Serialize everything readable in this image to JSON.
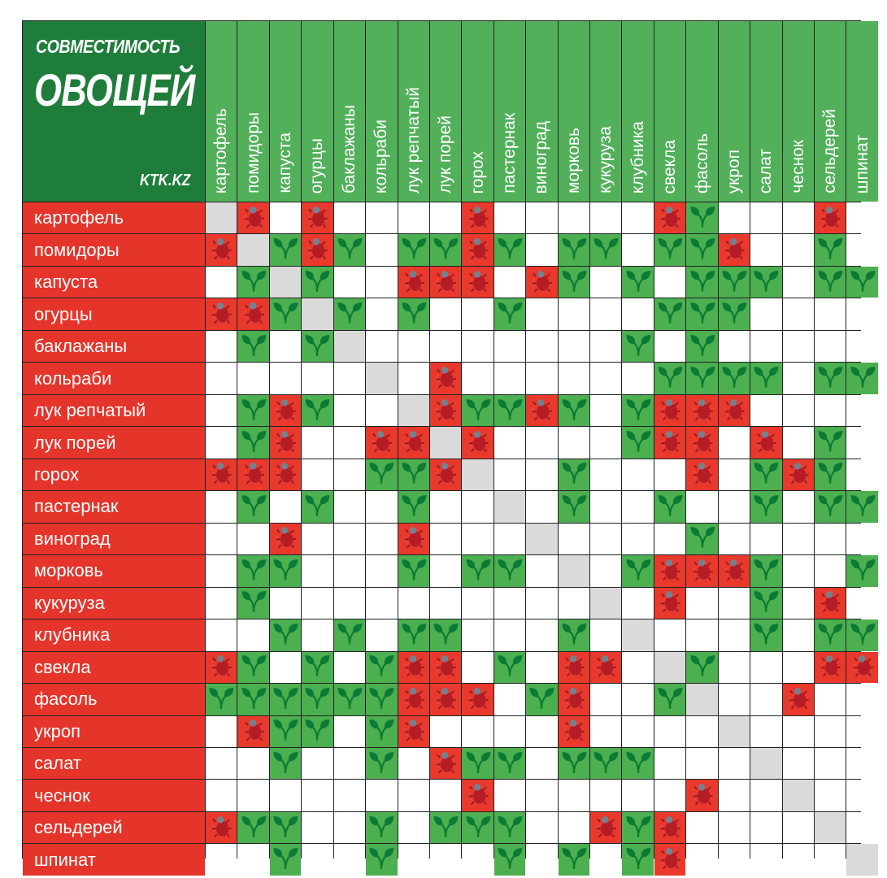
{
  "title": {
    "line1": "СОВМЕСТИМОСТЬ",
    "line2": "ОВОЩЕЙ",
    "site": "KTK.KZ"
  },
  "colors": {
    "title_bg": "#1f7d3b",
    "header_bg": "#52b05a",
    "row_label_bg": "#e5352b",
    "good": "#4caf50",
    "bad": "#e8392c",
    "self": "#dadada",
    "leaf": "#0b7a35"
  },
  "chart_data": {
    "type": "heatmap",
    "title": "СОВМЕСТИМОСТЬ ОВОЩЕЙ",
    "icons": {
      "good": "leaf-icon",
      "bad": "bug-icon"
    },
    "columns": [
      "картофель",
      "помидоры",
      "капуста",
      "огурцы",
      "баклажаны",
      "кольраби",
      "лук репчатый",
      "лук порей",
      "горох",
      "пастернак",
      "виноград",
      "морковь",
      "кукуруза",
      "клубника",
      "свекла",
      "фасоль",
      "укроп",
      "салат",
      "чеснок",
      "сельдерей",
      "шпинат"
    ],
    "rows": [
      "картофель",
      "помидоры",
      "капуста",
      "огурцы",
      "баклажаны",
      "кольраби",
      "лук репчатый",
      "лук порей",
      "горох",
      "пастернак",
      "виноград",
      "морковь",
      "кукуруза",
      "клубника",
      "свекла",
      "фасоль",
      "укроп",
      "салат",
      "чеснок",
      "сельдерей",
      "шпинат"
    ],
    "values": [
      [
        "self",
        "bad",
        "none",
        "bad",
        "none",
        "none",
        "none",
        "none",
        "bad",
        "none",
        "none",
        "none",
        "none",
        "none",
        "bad",
        "good",
        "none",
        "none",
        "none",
        "bad",
        "none"
      ],
      [
        "bad",
        "self",
        "good",
        "bad",
        "good",
        "none",
        "good",
        "good",
        "bad",
        "good",
        "none",
        "good",
        "good",
        "none",
        "good",
        "good",
        "bad",
        "none",
        "none",
        "good",
        "none"
      ],
      [
        "none",
        "good",
        "self",
        "good",
        "none",
        "none",
        "bad",
        "bad",
        "bad",
        "none",
        "bad",
        "good",
        "none",
        "good",
        "none",
        "good",
        "good",
        "good",
        "none",
        "good",
        "good"
      ],
      [
        "bad",
        "bad",
        "good",
        "self",
        "good",
        "none",
        "good",
        "none",
        "none",
        "good",
        "none",
        "none",
        "none",
        "none",
        "good",
        "good",
        "good",
        "none",
        "none",
        "none",
        "none"
      ],
      [
        "none",
        "good",
        "none",
        "good",
        "self",
        "none",
        "none",
        "none",
        "none",
        "none",
        "none",
        "none",
        "none",
        "good",
        "none",
        "good",
        "none",
        "none",
        "none",
        "none",
        "none"
      ],
      [
        "none",
        "none",
        "none",
        "none",
        "none",
        "self",
        "none",
        "bad",
        "none",
        "none",
        "none",
        "none",
        "none",
        "none",
        "good",
        "good",
        "good",
        "good",
        "none",
        "good",
        "good"
      ],
      [
        "none",
        "good",
        "bad",
        "good",
        "none",
        "none",
        "self",
        "bad",
        "good",
        "good",
        "bad",
        "good",
        "none",
        "good",
        "bad",
        "bad",
        "bad",
        "none",
        "none",
        "none",
        "none"
      ],
      [
        "none",
        "good",
        "bad",
        "none",
        "none",
        "bad",
        "bad",
        "self",
        "bad",
        "none",
        "none",
        "none",
        "none",
        "good",
        "bad",
        "bad",
        "none",
        "bad",
        "none",
        "good",
        "none"
      ],
      [
        "bad",
        "bad",
        "bad",
        "none",
        "none",
        "good",
        "good",
        "bad",
        "self",
        "none",
        "none",
        "good",
        "none",
        "none",
        "none",
        "bad",
        "none",
        "good",
        "bad",
        "good",
        "none"
      ],
      [
        "none",
        "good",
        "none",
        "good",
        "none",
        "none",
        "good",
        "none",
        "none",
        "self",
        "none",
        "good",
        "none",
        "none",
        "good",
        "none",
        "none",
        "good",
        "none",
        "good",
        "good"
      ],
      [
        "none",
        "none",
        "bad",
        "none",
        "none",
        "none",
        "bad",
        "none",
        "none",
        "none",
        "self",
        "none",
        "none",
        "none",
        "none",
        "good",
        "none",
        "none",
        "none",
        "none",
        "none"
      ],
      [
        "none",
        "good",
        "good",
        "none",
        "none",
        "none",
        "good",
        "none",
        "good",
        "good",
        "none",
        "self",
        "none",
        "good",
        "bad",
        "bad",
        "bad",
        "good",
        "none",
        "none",
        "good"
      ],
      [
        "none",
        "good",
        "none",
        "none",
        "none",
        "none",
        "none",
        "none",
        "none",
        "none",
        "none",
        "none",
        "self",
        "none",
        "bad",
        "none",
        "none",
        "good",
        "none",
        "bad",
        "none"
      ],
      [
        "none",
        "none",
        "good",
        "none",
        "good",
        "none",
        "good",
        "good",
        "none",
        "none",
        "none",
        "good",
        "none",
        "self",
        "none",
        "none",
        "none",
        "good",
        "none",
        "good",
        "good"
      ],
      [
        "bad",
        "good",
        "none",
        "good",
        "none",
        "good",
        "bad",
        "bad",
        "none",
        "good",
        "none",
        "bad",
        "bad",
        "none",
        "self",
        "good",
        "none",
        "none",
        "none",
        "bad",
        "bad"
      ],
      [
        "good",
        "good",
        "good",
        "good",
        "good",
        "good",
        "bad",
        "bad",
        "bad",
        "none",
        "good",
        "bad",
        "none",
        "none",
        "good",
        "self",
        "none",
        "none",
        "bad",
        "none",
        "none"
      ],
      [
        "none",
        "bad",
        "good",
        "good",
        "none",
        "good",
        "bad",
        "none",
        "none",
        "none",
        "none",
        "bad",
        "none",
        "none",
        "none",
        "none",
        "self",
        "none",
        "none",
        "none",
        "none"
      ],
      [
        "none",
        "none",
        "good",
        "none",
        "none",
        "good",
        "none",
        "bad",
        "good",
        "good",
        "none",
        "good",
        "good",
        "good",
        "none",
        "none",
        "none",
        "self",
        "none",
        "none",
        "none"
      ],
      [
        "none",
        "none",
        "none",
        "none",
        "none",
        "none",
        "none",
        "none",
        "bad",
        "none",
        "none",
        "none",
        "none",
        "none",
        "none",
        "bad",
        "none",
        "none",
        "self",
        "none",
        "none"
      ],
      [
        "bad",
        "good",
        "good",
        "none",
        "none",
        "good",
        "none",
        "good",
        "good",
        "good",
        "none",
        "none",
        "bad",
        "good",
        "bad",
        "none",
        "none",
        "none",
        "none",
        "self",
        "none"
      ],
      [
        "none",
        "none",
        "good",
        "none",
        "none",
        "good",
        "none",
        "none",
        "none",
        "good",
        "none",
        "good",
        "none",
        "good",
        "bad",
        "none",
        "none",
        "none",
        "none",
        "none",
        "self"
      ]
    ]
  }
}
